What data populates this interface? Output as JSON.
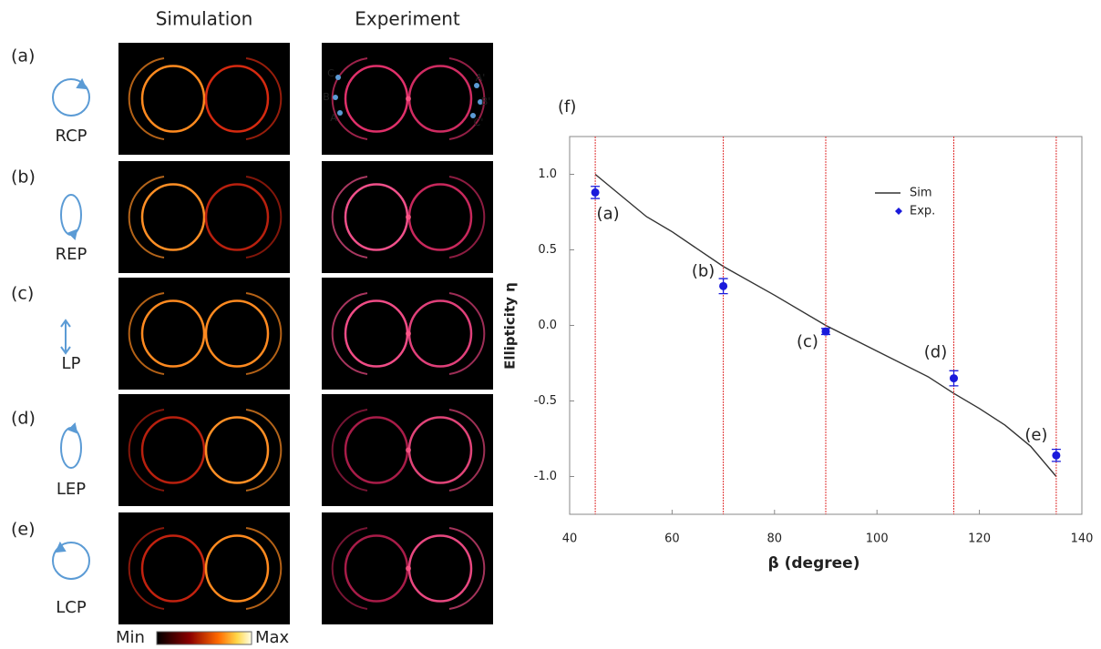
{
  "figure": {
    "column_titles": [
      "Simulation",
      "Experiment"
    ],
    "rows": [
      {
        "label": "(a)",
        "polarization": "RCP"
      },
      {
        "label": "(b)",
        "polarization": "REP"
      },
      {
        "label": "(c)",
        "polarization": "LP"
      },
      {
        "label": "(d)",
        "polarization": "LEP"
      },
      {
        "label": "(e)",
        "polarization": "LCP"
      }
    ],
    "point_labels": [
      "C",
      "B",
      "A",
      "A'",
      "B'",
      "C'"
    ],
    "colorbar": {
      "min": "Min",
      "max": "Max"
    }
  },
  "chart_data": {
    "type": "line",
    "panel_label": "(f)",
    "x_label": "β (degree)",
    "y_label": "Ellipticity η",
    "xlim": [
      40,
      140
    ],
    "xticks": [
      40,
      60,
      80,
      100,
      120,
      140
    ],
    "ylim": [
      -1.25,
      1.25
    ],
    "yticks": [
      {
        "value": 1,
        "label": "1.0"
      },
      {
        "value": 0.5,
        "label": "0.5"
      },
      {
        "value": 0,
        "label": "0.0"
      },
      {
        "value": -0.5,
        "label": "-0.5"
      },
      {
        "value": -1,
        "label": "-1.0"
      }
    ],
    "series": [
      {
        "name": "Sim",
        "color": "#333333",
        "x": [
          45,
          50,
          55,
          60,
          70,
          80,
          90,
          100,
          110,
          115,
          120,
          125,
          130,
          135
        ],
        "values": [
          1.0,
          0.86,
          0.72,
          0.62,
          0.39,
          0.2,
          0.0,
          -0.17,
          -0.34,
          -0.45,
          -0.55,
          -0.66,
          -0.8,
          -1.0
        ]
      },
      {
        "name": "Exp.",
        "color": "#1a1adb",
        "x": [
          45,
          70,
          90,
          115,
          135
        ],
        "values": [
          0.88,
          0.26,
          -0.04,
          -0.35,
          -0.86
        ],
        "errors": [
          0.04,
          0.05,
          0.02,
          0.05,
          0.04
        ],
        "point_labels": [
          "(a)",
          "(b)",
          "(c)",
          "(d)",
          "(e)"
        ],
        "guide_color": "#e03030"
      }
    ],
    "legend": "upper right"
  }
}
